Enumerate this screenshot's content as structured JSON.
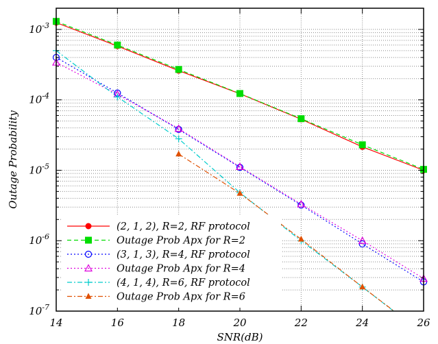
{
  "chart_data": {
    "type": "line",
    "title": "",
    "xlabel": "SNR(dB)",
    "ylabel": "Outage Probability",
    "xlim": [
      14,
      26
    ],
    "ylim": [
      1e-07,
      0.002
    ],
    "y_scale": "log",
    "grid": true,
    "legend_position": "bottom-left",
    "x_ticks": [
      "14",
      "16",
      "18",
      "20",
      "22",
      "24",
      "26"
    ],
    "y_ticks": [
      {
        "base": "10",
        "exp": "-7",
        "value": 1e-07
      },
      {
        "base": "10",
        "exp": "-6",
        "value": 1e-06
      },
      {
        "base": "10",
        "exp": "-5",
        "value": 1e-05
      },
      {
        "base": "10",
        "exp": "-4",
        "value": 0.0001
      },
      {
        "base": "10",
        "exp": "-3",
        "value": 0.001
      }
    ],
    "series": [
      {
        "name": "(2, 1, 2), R=2, RF protocol",
        "color": "#ff0000",
        "dash": "",
        "marker": "filled-circle",
        "x": [
          14,
          16,
          18,
          20,
          22,
          24,
          26
        ],
        "y": [
          0.00125,
          0.00058,
          0.00026,
          0.000122,
          5.3e-05,
          2.15e-05,
          1e-05
        ]
      },
      {
        "name": "Outage Prob Apx for R=2",
        "color": "#00dd00",
        "dash": "6,4",
        "marker": "filled-square",
        "x": [
          14,
          16,
          18,
          20,
          22,
          24,
          26
        ],
        "y": [
          0.0013,
          0.0006,
          0.00027,
          0.000123,
          5.4e-05,
          2.3e-05,
          1.03e-05
        ]
      },
      {
        "name": "(3, 1, 3), R=4, RF protocol",
        "color": "#0000ff",
        "dash": "2,3",
        "marker": "open-circle",
        "x": [
          14,
          16,
          18,
          20,
          22,
          24,
          26
        ],
        "y": [
          0.0004,
          0.000125,
          3.8e-05,
          1.1e-05,
          3.2e-06,
          9e-07,
          2.6e-07
        ]
      },
      {
        "name": "Outage Prob Apx for R=4",
        "color": "#dd00dd",
        "dash": "2,3",
        "marker": "open-triangle",
        "x": [
          14,
          16,
          18,
          20,
          22,
          24,
          26
        ],
        "y": [
          0.00034,
          0.00012,
          3.9e-05,
          1.12e-05,
          3.3e-06,
          1e-06,
          2.9e-07
        ]
      },
      {
        "name": "(4, 1, 4), R=6, RF protocol",
        "color": "#00cccc",
        "dash": "7,3,2,3",
        "marker": "plus",
        "x": [
          14,
          16,
          18,
          20,
          22,
          24,
          26
        ],
        "y": [
          0.0005,
          0.00011,
          2.8e-05,
          4.8e-06,
          1e-06,
          2.2e-07,
          4.7e-08
        ]
      },
      {
        "name": "Outage Prob Apx for R=6",
        "color": "#e05000",
        "dash": "7,3,2,3",
        "marker": "filled-triangle",
        "x": [
          18,
          20,
          22,
          24,
          26
        ],
        "y": [
          1.7e-05,
          4.7e-06,
          1.05e-06,
          2.2e-07,
          4.8e-08
        ]
      }
    ]
  }
}
